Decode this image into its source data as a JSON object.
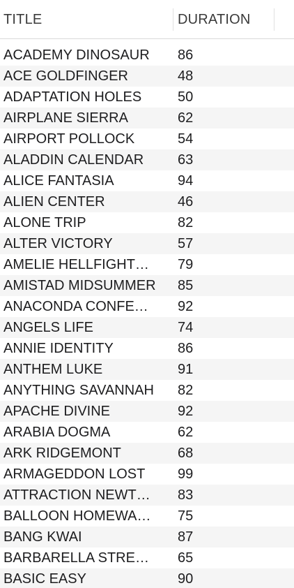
{
  "table": {
    "columns": [
      "TITLE",
      "DURATION"
    ],
    "rows": [
      {
        "title": "ACADEMY DINOSAUR",
        "duration": "86"
      },
      {
        "title": "ACE GOLDFINGER",
        "duration": "48"
      },
      {
        "title": "ADAPTATION HOLES",
        "duration": "50"
      },
      {
        "title": "AIRPLANE SIERRA",
        "duration": "62"
      },
      {
        "title": "AIRPORT POLLOCK",
        "duration": "54"
      },
      {
        "title": "ALADDIN CALENDAR",
        "duration": "63"
      },
      {
        "title": "ALICE FANTASIA",
        "duration": "94"
      },
      {
        "title": "ALIEN CENTER",
        "duration": "46"
      },
      {
        "title": "ALONE TRIP",
        "duration": "82"
      },
      {
        "title": "ALTER VICTORY",
        "duration": "57"
      },
      {
        "title": "AMELIE HELLFIGHT…",
        "duration": "79"
      },
      {
        "title": "AMISTAD MIDSUMMER",
        "duration": "85"
      },
      {
        "title": "ANACONDA CONFE…",
        "duration": "92"
      },
      {
        "title": "ANGELS LIFE",
        "duration": "74"
      },
      {
        "title": "ANNIE IDENTITY",
        "duration": "86"
      },
      {
        "title": "ANTHEM LUKE",
        "duration": "91"
      },
      {
        "title": "ANYTHING SAVANNAH",
        "duration": "82"
      },
      {
        "title": "APACHE DIVINE",
        "duration": "92"
      },
      {
        "title": "ARABIA DOGMA",
        "duration": "62"
      },
      {
        "title": "ARK RIDGEMONT",
        "duration": "68"
      },
      {
        "title": "ARMAGEDDON LOST",
        "duration": "99"
      },
      {
        "title": "ATTRACTION NEWT…",
        "duration": "83"
      },
      {
        "title": "BALLOON HOMEWA…",
        "duration": "75"
      },
      {
        "title": "BANG KWAI",
        "duration": "87"
      },
      {
        "title": "BARBARELLA STRE…",
        "duration": "65"
      },
      {
        "title": "BASIC EASY",
        "duration": "90"
      }
    ]
  }
}
